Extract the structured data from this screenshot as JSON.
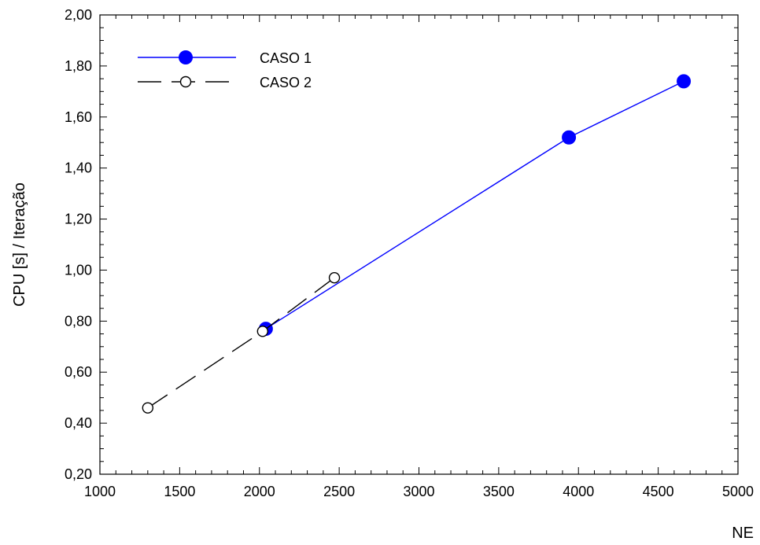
{
  "chart_data": {
    "type": "line",
    "title": "",
    "xlabel": "NE",
    "ylabel": "CPU [s] / Iteração",
    "xlim": [
      1000,
      5000
    ],
    "ylim": [
      0.2,
      2.0
    ],
    "x_ticks": [
      1000,
      1500,
      2000,
      2500,
      3000,
      3500,
      4000,
      4500,
      5000
    ],
    "x_tick_labels": [
      "1000",
      "1500",
      "2000",
      "2500",
      "3000",
      "3500",
      "4000",
      "4500",
      "5000"
    ],
    "y_ticks": [
      0.2,
      0.4,
      0.6,
      0.8,
      1.0,
      1.2,
      1.4,
      1.6,
      1.8,
      2.0
    ],
    "y_tick_labels": [
      "0,20",
      "0,40",
      "0,60",
      "0,80",
      "1,00",
      "1,20",
      "1,40",
      "1,60",
      "1,80",
      "2,00"
    ],
    "grid": false,
    "legend_position": "top-left",
    "series": [
      {
        "name": "CASO 1",
        "color": "#0000ff",
        "line_style": "solid",
        "marker": "filled-circle",
        "x": [
          2040,
          3940,
          4660
        ],
        "y": [
          0.77,
          1.52,
          1.74
        ]
      },
      {
        "name": "CASO 2",
        "color": "#000000",
        "line_style": "dashed",
        "marker": "open-circle",
        "x": [
          1300,
          2020,
          2470
        ],
        "y": [
          0.46,
          0.76,
          0.97
        ]
      }
    ]
  }
}
